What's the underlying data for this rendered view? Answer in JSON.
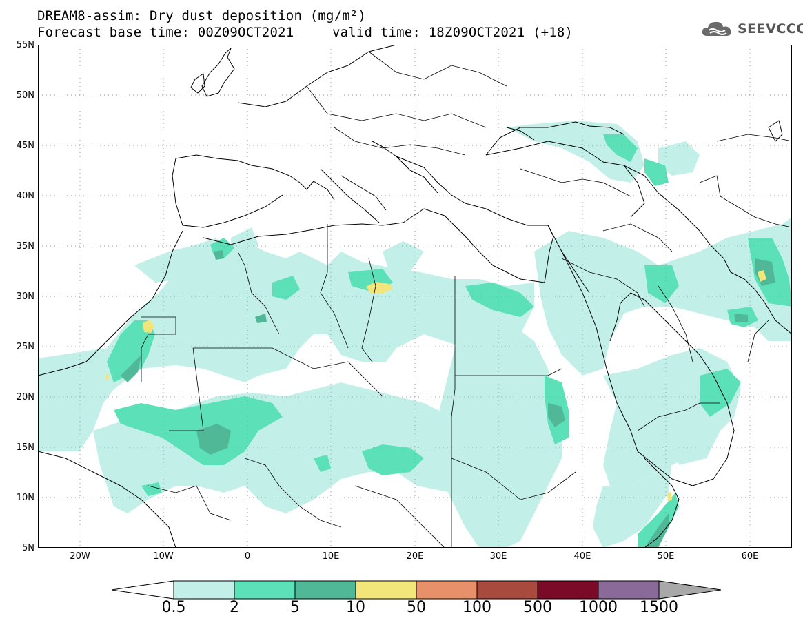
{
  "header": {
    "title_line1": "DREAM8-assim: Dry dust deposition (mg/m²)",
    "base_time": "Forecast base time: 00Z09OCT2021",
    "valid_time": "valid time: 18Z09OCT2021 (+18)",
    "logo_text": "SEEVCCC"
  },
  "axes": {
    "lat_labels": [
      "55N",
      "50N",
      "45N",
      "40N",
      "35N",
      "30N",
      "25N",
      "20N",
      "15N",
      "10N",
      "5N"
    ],
    "lon_labels": [
      "20W",
      "10W",
      "0",
      "10E",
      "20E",
      "30E",
      "40E",
      "50E",
      "60E"
    ]
  },
  "legend": {
    "labels": [
      "0.5",
      "2",
      "5",
      "10",
      "50",
      "100",
      "500",
      "1000",
      "1500"
    ],
    "colors": [
      "#c2f0e8",
      "#5ce0b8",
      "#50b896",
      "#f2e67a",
      "#e8906a",
      "#a84a3e",
      "#7a0a28",
      "#8a6a98",
      "#a8a8a8"
    ]
  },
  "colors": {
    "level1": "#c2f0e8",
    "level2": "#5ce0b8",
    "level3": "#50b896",
    "level4": "#f2e67a",
    "coast": "#000000"
  }
}
